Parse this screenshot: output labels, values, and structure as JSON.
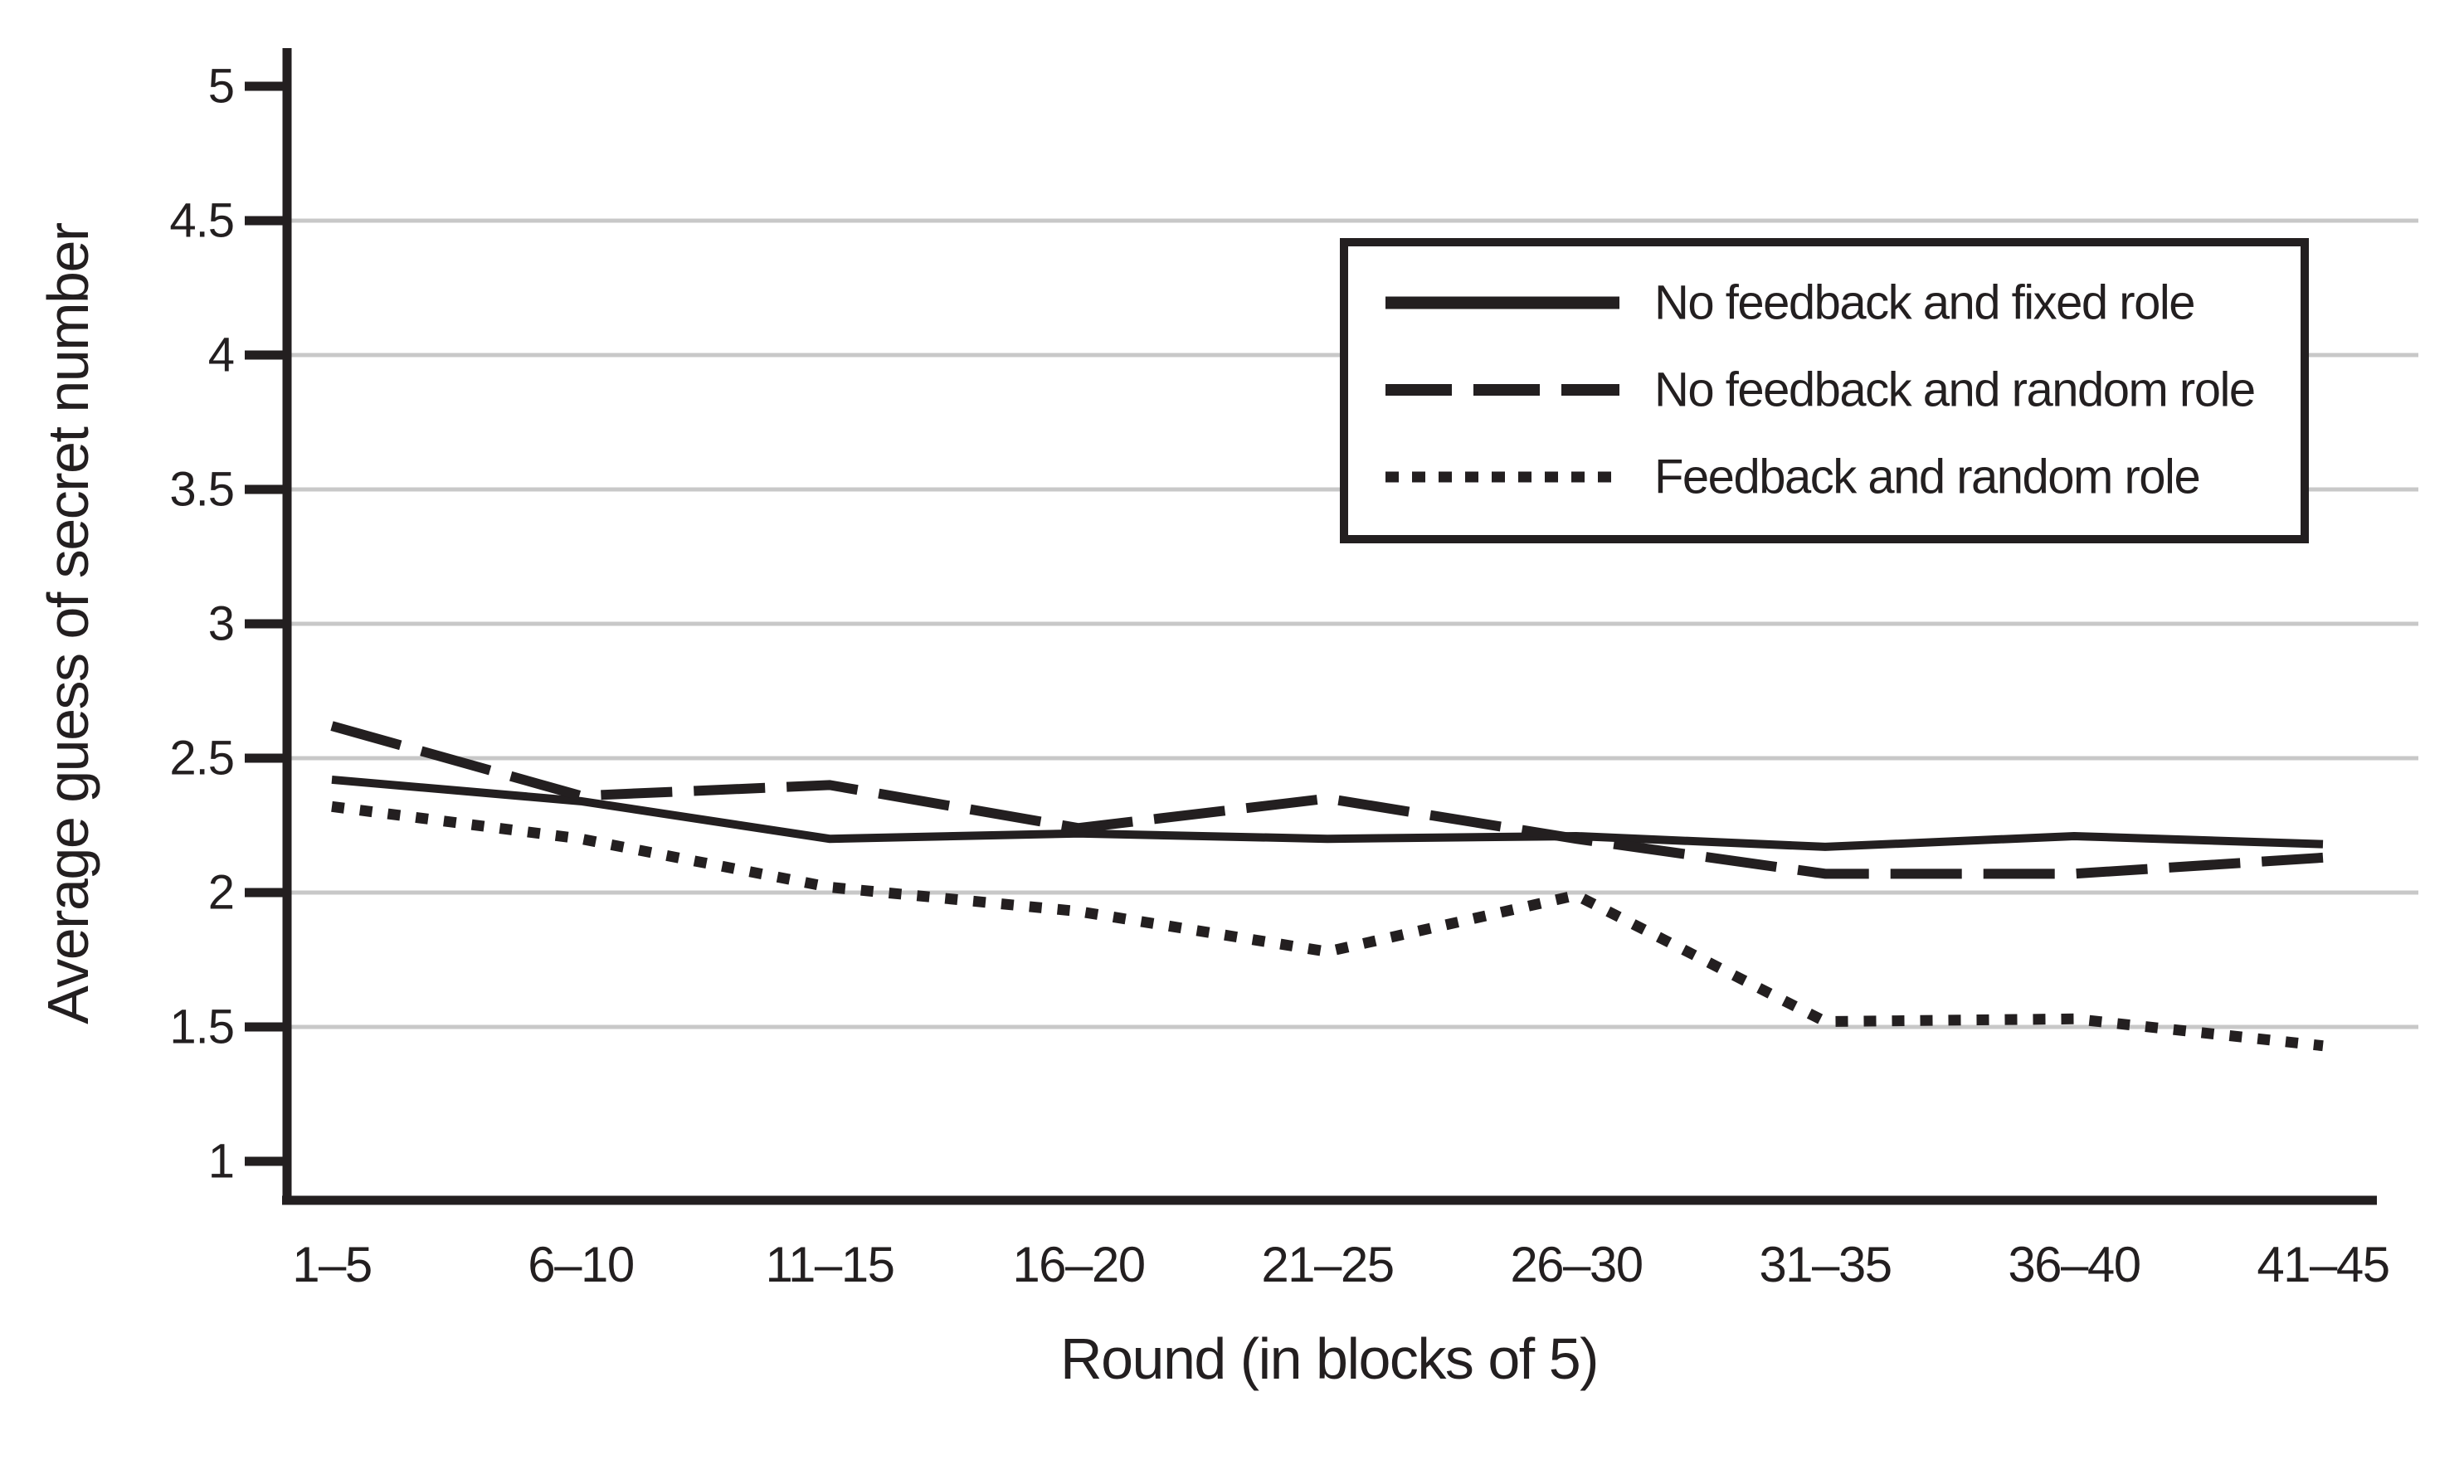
{
  "figure": {
    "background_color": "#ffffff",
    "ink_color": "#231f20",
    "gridline_color": "#c8c8c8",
    "legend_fill_color": "#ffffff"
  },
  "chart_data": {
    "type": "line",
    "title": "",
    "xlabel": "Round (in blocks of 5)",
    "ylabel": "Average guess of secret number",
    "categories": [
      "1–5",
      "6–10",
      "11–15",
      "16–20",
      "21–25",
      "26–30",
      "31–35",
      "36–40",
      "41–45"
    ],
    "x_tick_labels": [
      "1–5",
      "6–10",
      "11–15",
      "16–20",
      "21–25",
      "26–30",
      "31–35",
      "36–40",
      "41–45"
    ],
    "y_ticks": [
      1,
      1.5,
      2,
      2.5,
      3,
      3.5,
      4,
      4.5,
      5
    ],
    "y_tick_labels": [
      "1",
      "1.5",
      "2",
      "2.5",
      "3",
      "3.5",
      "4",
      "4.5",
      "5"
    ],
    "gridline_values": [
      1.5,
      2,
      2.5,
      3,
      3.5,
      4,
      4.5
    ],
    "ylim": [
      1,
      5
    ],
    "grid": true,
    "legend_position": "upper-right",
    "series": [
      {
        "name": "No feedback and fixed role",
        "style": "solid",
        "values": [
          2.42,
          2.34,
          2.2,
          2.22,
          2.2,
          2.21,
          2.17,
          2.21,
          2.18
        ]
      },
      {
        "name": "No feedback and random role",
        "style": "long-dash",
        "values": [
          2.62,
          2.36,
          2.4,
          2.24,
          2.35,
          2.2,
          2.07,
          2.07,
          2.13
        ]
      },
      {
        "name": "Feedback and random role",
        "style": "dotted",
        "values": [
          2.32,
          2.2,
          2.02,
          1.93,
          1.78,
          1.99,
          1.52,
          1.53,
          1.43
        ]
      }
    ]
  }
}
